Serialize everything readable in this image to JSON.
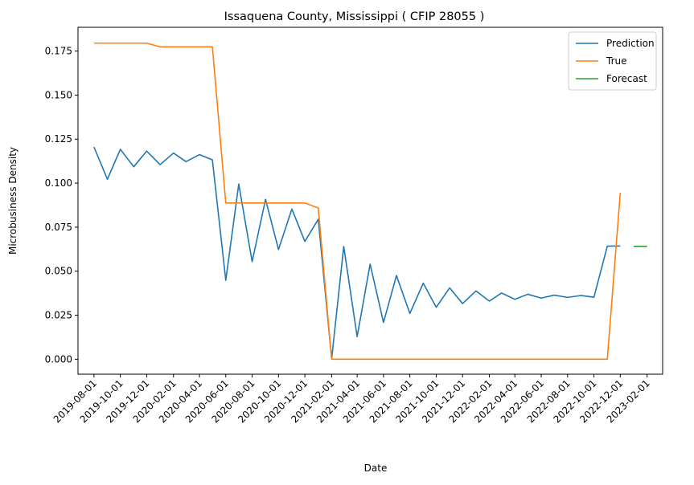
{
  "chart_data": {
    "type": "line",
    "title": "Issaquena County, Mississippi ( CFIP 28055 )",
    "xlabel": "Date",
    "ylabel": "Microbusiness Density",
    "x_ticks": [
      "2019-08-01",
      "2019-10-01",
      "2019-12-01",
      "2020-02-01",
      "2020-04-01",
      "2020-06-01",
      "2020-08-01",
      "2020-10-01",
      "2020-12-01",
      "2021-02-01",
      "2021-04-01",
      "2021-06-01",
      "2021-08-01",
      "2021-10-01",
      "2021-12-01",
      "2022-02-01",
      "2022-04-01",
      "2022-06-01",
      "2022-08-01",
      "2022-10-01",
      "2022-12-01",
      "2023-02-01"
    ],
    "y_ticks": [
      "0.000",
      "0.025",
      "0.050",
      "0.075",
      "0.100",
      "0.125",
      "0.150",
      "0.175"
    ],
    "ylim": [
      -0.0085,
      0.1885
    ],
    "xlim": [
      "2019-06-25",
      "2023-03-09"
    ],
    "grid": false,
    "legend_position": "top-right",
    "series": [
      {
        "name": "Prediction",
        "color": "#1f77b4",
        "x": [
          "2019-08-01",
          "2019-09-01",
          "2019-10-01",
          "2019-11-01",
          "2019-12-01",
          "2020-01-01",
          "2020-02-01",
          "2020-03-01",
          "2020-04-01",
          "2020-05-01",
          "2020-06-01",
          "2020-07-01",
          "2020-08-01",
          "2020-09-01",
          "2020-10-01",
          "2020-11-01",
          "2020-12-01",
          "2021-01-01",
          "2021-02-01",
          "2021-03-01",
          "2021-04-01",
          "2021-05-01",
          "2021-06-01",
          "2021-07-01",
          "2021-08-01",
          "2021-09-01",
          "2021-10-01",
          "2021-11-01",
          "2021-12-01",
          "2022-01-01",
          "2022-02-01",
          "2022-03-01",
          "2022-04-01",
          "2022-05-01",
          "2022-06-01",
          "2022-07-01",
          "2022-08-01",
          "2022-09-01",
          "2022-10-01",
          "2022-11-01",
          "2022-12-01"
        ],
        "values": [
          0.1205,
          0.1022,
          0.1192,
          0.1093,
          0.1182,
          0.1105,
          0.1171,
          0.1122,
          0.1162,
          0.1132,
          0.0448,
          0.0995,
          0.0554,
          0.0908,
          0.0623,
          0.0853,
          0.0669,
          0.0795,
          0.0003,
          0.064,
          0.0128,
          0.054,
          0.0209,
          0.0475,
          0.026,
          0.0432,
          0.0295,
          0.0405,
          0.0316,
          0.0388,
          0.033,
          0.0376,
          0.034,
          0.0369,
          0.0347,
          0.0364,
          0.0351,
          0.0362,
          0.0352,
          0.0642,
          0.0643
        ]
      },
      {
        "name": "True",
        "color": "#ff7f0e",
        "x": [
          "2019-08-01",
          "2019-09-01",
          "2019-10-01",
          "2019-11-01",
          "2019-12-01",
          "2020-01-01",
          "2020-02-01",
          "2020-03-01",
          "2020-04-01",
          "2020-05-01",
          "2020-06-01",
          "2020-07-01",
          "2020-08-01",
          "2020-09-01",
          "2020-10-01",
          "2020-11-01",
          "2020-12-01",
          "2021-01-01",
          "2021-02-01",
          "2021-03-01",
          "2021-04-01",
          "2021-05-01",
          "2021-06-01",
          "2021-07-01",
          "2021-08-01",
          "2021-09-01",
          "2021-10-01",
          "2021-11-01",
          "2021-12-01",
          "2022-01-01",
          "2022-02-01",
          "2022-03-01",
          "2022-04-01",
          "2022-05-01",
          "2022-06-01",
          "2022-07-01",
          "2022-08-01",
          "2022-09-01",
          "2022-10-01",
          "2022-11-01",
          "2022-12-01"
        ],
        "values": [
          0.1795,
          0.1795,
          0.1795,
          0.1795,
          0.1795,
          0.1774,
          0.1774,
          0.1774,
          0.1774,
          0.1774,
          0.0887,
          0.0887,
          0.0887,
          0.0887,
          0.0887,
          0.0887,
          0.0887,
          0.0859,
          0.0,
          0.0,
          0.0,
          0.0,
          0.0,
          0.0,
          0.0,
          0.0,
          0.0,
          0.0,
          0.0,
          0.0,
          0.0,
          0.0,
          0.0,
          0.0,
          0.0,
          0.0,
          0.0,
          0.0,
          0.0,
          0.0,
          0.0946
        ]
      },
      {
        "name": "Forecast",
        "color": "#2ca02c",
        "x": [
          "2023-01-01",
          "2023-02-01"
        ],
        "values": [
          0.0641,
          0.0641
        ]
      }
    ]
  }
}
